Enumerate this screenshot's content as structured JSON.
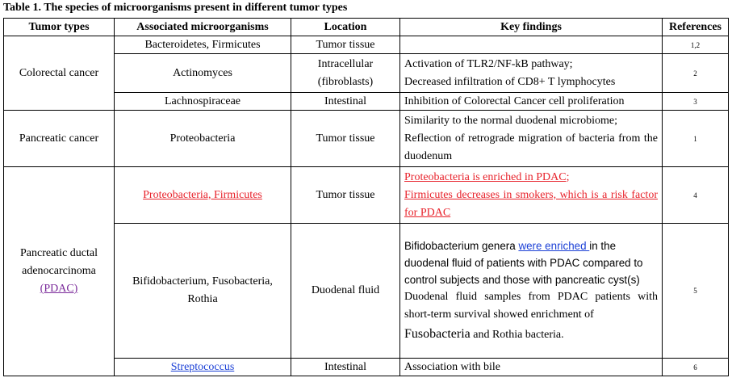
{
  "caption": "Table 1. The species of microorganisms present in different tumor types",
  "headers": {
    "tumor": "Tumor types",
    "micro": "Associated microorganisms",
    "location": "Location",
    "findings": "Key findings",
    "refs": "References"
  },
  "crc": {
    "tumor": "Colorectal cancer",
    "r1": {
      "micro": "Bacteroidetes, Firmicutes",
      "location": "Tumor tissue",
      "ref": "1,2"
    },
    "r2": {
      "micro": "Actinomyces",
      "location_1": "Intracellular",
      "location_2": "(fibroblasts)",
      "finding_1": "Activation of TLR2/NF-kB pathway;",
      "finding_2": "Decreased infiltration of CD8+ T lymphocytes",
      "ref": "2"
    },
    "r3": {
      "micro": "Lachnospiraceae",
      "location": "Intestinal",
      "finding": "Inhibition of Colorectal Cancer cell proliferation",
      "ref": "3"
    }
  },
  "pc": {
    "tumor": "Pancreatic cancer",
    "micro": "Proteobacteria",
    "location": "Tumor tissue",
    "finding_1": "Similarity to the normal duodenal microbiome;",
    "finding_2": "Reflection of retrograde migration of bacteria from the duodenum",
    "ref": "1"
  },
  "pdac": {
    "tumor_1": "Pancreatic ductal",
    "tumor_2": "adenocarcinoma",
    "tumor_3": "(PDAC)",
    "r1": {
      "micro": "Proteobacteria, Firmicutes",
      "location": "Tumor tissue",
      "finding_1": "Proteobacteria is enriched in PDAC;",
      "finding_2": "Firmicutes decreases in smokers, which is a risk factor for PDAC",
      "ref": "4"
    },
    "r2": {
      "micro_1": "Bifidobacterium, Fusobacteria,",
      "micro_2": "Rothia",
      "location": "Duodenal fluid",
      "f1_a": "Bifidobacterium genera ",
      "f1_link": "were enriched ",
      "f1_b": "in the duodenal fluid of patients with PDAC compared to control subjects and those with pancreatic cyst(s)",
      "f2": "Duodenal fluid samples from PDAC patients with short-term survival showed enrichment of",
      "f2_big": "Fusobacteria",
      "f2_end": " and Rothia bacteria.",
      "ref": "5"
    },
    "r3": {
      "micro": "Streptococcus",
      "location": "Intestinal",
      "finding": "Association with bile",
      "ref": "6"
    }
  }
}
